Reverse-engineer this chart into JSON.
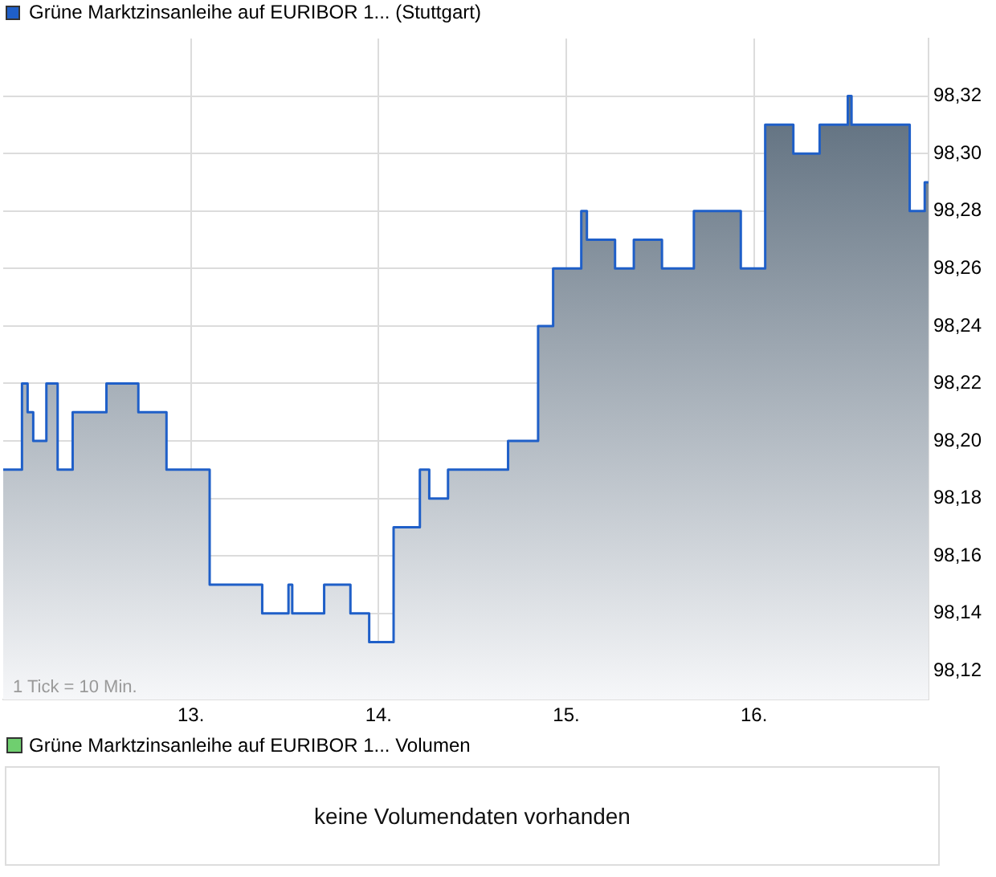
{
  "chart_data": [
    {
      "type": "area",
      "legend": "top left",
      "grid": true,
      "marker": "none",
      "series": [
        {
          "name": "Grüne Marktzinsanleihe auf EURIBOR 1... (Stuttgart)",
          "color": "#1f5fc8",
          "x": [
            12.0,
            12.1,
            12.1,
            12.13,
            12.13,
            12.16,
            12.16,
            12.23,
            12.23,
            12.29,
            12.29,
            12.37,
            12.37,
            12.55,
            12.55,
            12.72,
            12.72,
            12.87,
            12.87,
            13.1,
            13.1,
            13.38,
            13.38,
            13.52,
            13.52,
            13.54,
            13.54,
            13.71,
            13.71,
            13.85,
            13.85,
            13.95,
            13.95,
            14.08,
            14.08,
            14.22,
            14.22,
            14.27,
            14.27,
            14.37,
            14.37,
            14.69,
            14.69,
            14.85,
            14.85,
            14.93,
            14.93,
            15.08,
            15.08,
            15.11,
            15.11,
            15.26,
            15.26,
            15.36,
            15.36,
            15.51,
            15.51,
            15.68,
            15.68,
            15.93,
            15.93,
            16.06,
            16.06,
            16.21,
            16.21,
            16.35,
            16.35,
            16.5,
            16.5,
            16.52,
            16.52,
            16.83,
            16.83,
            16.91,
            16.91,
            16.93
          ],
          "values": [
            98.19,
            98.19,
            98.22,
            98.22,
            98.21,
            98.21,
            98.2,
            98.2,
            98.22,
            98.22,
            98.19,
            98.19,
            98.21,
            98.21,
            98.22,
            98.22,
            98.21,
            98.21,
            98.19,
            98.19,
            98.15,
            98.15,
            98.14,
            98.14,
            98.15,
            98.15,
            98.14,
            98.14,
            98.15,
            98.15,
            98.14,
            98.14,
            98.13,
            98.13,
            98.17,
            98.17,
            98.19,
            98.19,
            98.18,
            98.18,
            98.19,
            98.19,
            98.2,
            98.2,
            98.24,
            98.24,
            98.26,
            98.26,
            98.28,
            98.28,
            98.27,
            98.27,
            98.26,
            98.26,
            98.27,
            98.27,
            98.26,
            98.26,
            98.28,
            98.28,
            98.26,
            98.26,
            98.31,
            98.31,
            98.3,
            98.3,
            98.31,
            98.31,
            98.32,
            98.32,
            98.31,
            98.31,
            98.28,
            98.28,
            98.29,
            98.29
          ]
        }
      ],
      "xlim": [
        12.0,
        16.93
      ],
      "xticks": [
        {
          "value": 13,
          "label": "13."
        },
        {
          "value": 14,
          "label": "14."
        },
        {
          "value": 15,
          "label": "15."
        },
        {
          "value": 16,
          "label": "16."
        }
      ],
      "ylim": [
        98.11,
        98.34
      ],
      "yticks": [
        {
          "value": 98.12,
          "label": "98,12"
        },
        {
          "value": 98.14,
          "label": "98,14"
        },
        {
          "value": 98.16,
          "label": "98,16"
        },
        {
          "value": 98.18,
          "label": "98,18"
        },
        {
          "value": 98.2,
          "label": "98,20"
        },
        {
          "value": 98.22,
          "label": "98,22"
        },
        {
          "value": 98.24,
          "label": "98,24"
        },
        {
          "value": 98.26,
          "label": "98,26"
        },
        {
          "value": 98.28,
          "label": "98,28"
        },
        {
          "value": 98.3,
          "label": "98,30"
        },
        {
          "value": 98.32,
          "label": "98,32"
        }
      ],
      "annotations": [
        "1 Tick = 10 Min."
      ]
    },
    {
      "type": "other",
      "title": "Grüne Marktzinsanleihe auf EURIBOR 1... Volumen",
      "annotations": [
        "keine Volumendaten vorhanden"
      ]
    }
  ]
}
